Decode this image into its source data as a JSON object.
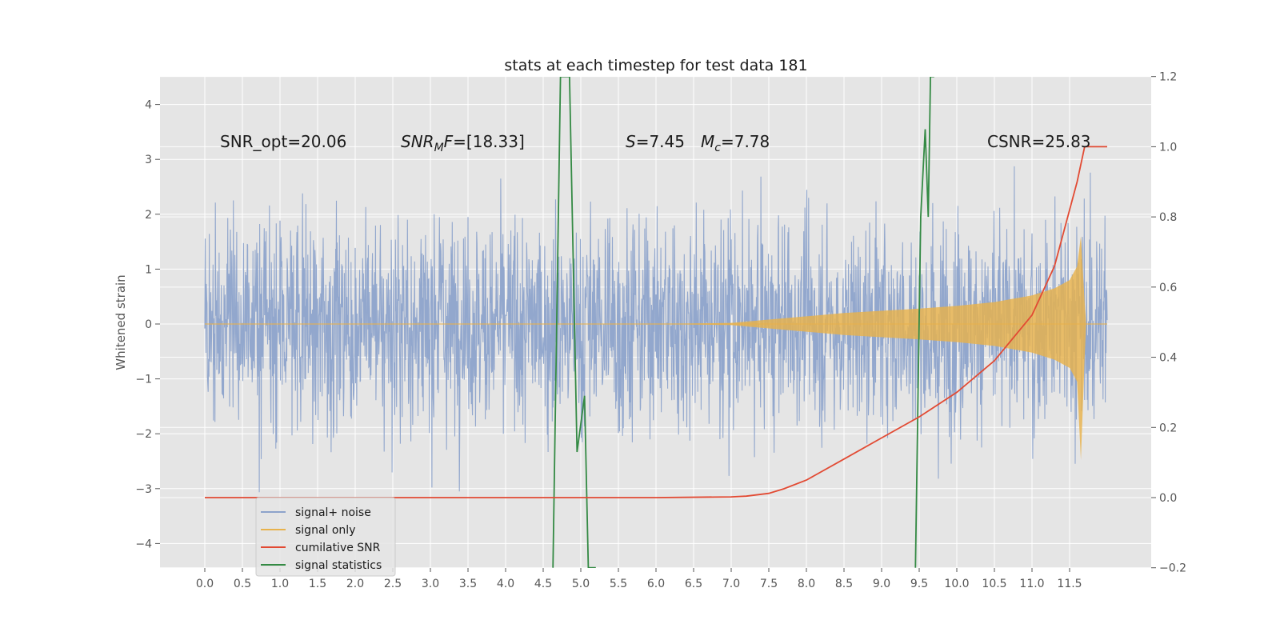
{
  "chart_data": {
    "type": "line",
    "title": "stats at each timestep for test data 181",
    "ylabel": "Whitened strain",
    "xlabel": "",
    "xlim": [
      -0.5,
      12.7
    ],
    "ylim": [
      -4.45,
      4.5
    ],
    "y2lim": [
      -0.2,
      1.2
    ],
    "grid": true,
    "legend_position": "lower-left",
    "x_ticks": [
      "0.0",
      "0.5",
      "1.0",
      "1.5",
      "2.0",
      "2.5",
      "3.0",
      "3.5",
      "4.0",
      "4.5",
      "5.0",
      "5.5",
      "6.0",
      "6.5",
      "7.0",
      "7.5",
      "8.0",
      "8.5",
      "9.0",
      "9.5",
      "10.0",
      "10.5",
      "11.0",
      "11.5"
    ],
    "y_ticks": [
      "4",
      "3",
      "2",
      "1",
      "0",
      "−1",
      "−2",
      "−3",
      "−4"
    ],
    "y2_ticks": [
      "1.2",
      "1.0",
      "0.8",
      "0.6",
      "0.4",
      "0.2",
      "0.0",
      "−0.2"
    ],
    "annotations": {
      "snr_opt": "SNR_opt=20.06",
      "snr_mf_sym": "SNR",
      "snr_mf_sub": "M",
      "snr_mf_rest": "F=[18.33]",
      "s_sym": "S",
      "s_val": "=7.45",
      "mc_sym": "M",
      "mc_sub": "c",
      "mc_val": "=7.78",
      "csnr": "CSNR=25.83"
    },
    "colors": {
      "signal_noise": "#8da3cb",
      "signal_only": "#e8b24c",
      "cumulative_snr": "#e24a33",
      "signal_statistics": "#348a44"
    },
    "series": [
      {
        "name": "signal+ noise",
        "axis": "left",
        "description_values": "gaussian noise, envelope of amplitude",
        "envelope_x": [
          0.0,
          12.0
        ],
        "envelope_y": [
          -2.9,
          3.2
        ]
      },
      {
        "name": "signal only",
        "axis": "left",
        "envelope_x": [
          0.0,
          6.0,
          7.0,
          7.5,
          8.0,
          8.5,
          9.0,
          9.5,
          10.0,
          10.5,
          11.0,
          11.3,
          11.5,
          11.6,
          11.65,
          11.7,
          11.72,
          12.0
        ],
        "envelope_y": [
          0.0,
          0.0,
          0.02,
          0.08,
          0.14,
          0.2,
          0.24,
          0.28,
          0.33,
          0.4,
          0.52,
          0.65,
          0.8,
          1.05,
          1.6,
          0.4,
          0.0,
          0.0
        ]
      },
      {
        "name": "cumilative SNR",
        "axis": "right",
        "x": [
          0.0,
          1.0,
          2.0,
          3.0,
          4.0,
          5.0,
          6.0,
          7.0,
          7.2,
          7.5,
          7.7,
          8.0,
          8.5,
          9.0,
          9.5,
          10.0,
          10.5,
          11.0,
          11.3,
          11.5,
          11.6,
          11.7,
          11.8,
          12.0
        ],
        "values": [
          0.0,
          0.0,
          0.0,
          0.0,
          0.0,
          0.0,
          0.0,
          0.002,
          0.004,
          0.012,
          0.025,
          0.05,
          0.11,
          0.17,
          0.23,
          0.3,
          0.39,
          0.52,
          0.66,
          0.82,
          0.9,
          1.0,
          1.0,
          1.0
        ]
      },
      {
        "name": "signal statistics",
        "axis": "right",
        "x": [
          4.63,
          4.73,
          4.85,
          4.95,
          5.05,
          5.1,
          5.2,
          9.45,
          9.52,
          9.58,
          9.62,
          9.65,
          9.7
        ],
        "values": [
          -0.2,
          1.2,
          1.2,
          0.13,
          0.29,
          -0.2,
          -0.2,
          -0.2,
          0.8,
          1.05,
          0.8,
          1.2,
          1.2
        ]
      }
    ]
  }
}
